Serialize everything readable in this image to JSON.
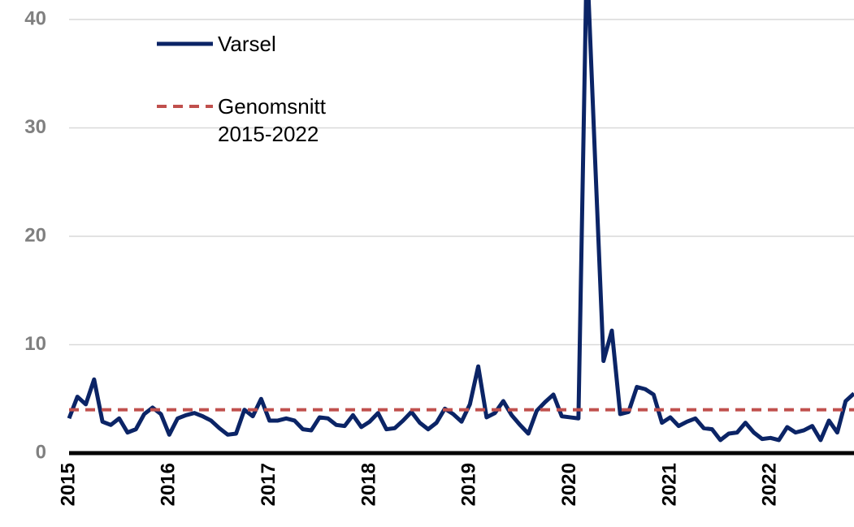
{
  "chart_data": {
    "type": "line",
    "categories": [
      "2015",
      null,
      null,
      null,
      null,
      null,
      null,
      null,
      null,
      null,
      null,
      null,
      "2016",
      null,
      null,
      null,
      null,
      null,
      null,
      null,
      null,
      null,
      null,
      null,
      "2017",
      null,
      null,
      null,
      null,
      null,
      null,
      null,
      null,
      null,
      null,
      null,
      "2018",
      null,
      null,
      null,
      null,
      null,
      null,
      null,
      null,
      null,
      null,
      null,
      "2019",
      null,
      null,
      null,
      null,
      null,
      null,
      null,
      null,
      null,
      null,
      null,
      "2020",
      null,
      null,
      null,
      null,
      null,
      null,
      null,
      null,
      null,
      null,
      null,
      "2021",
      null,
      null,
      null,
      null,
      null,
      null,
      null,
      null,
      null,
      null,
      null,
      "2022",
      null,
      null,
      null,
      null,
      null,
      null,
      null,
      null,
      null,
      null
    ],
    "series": [
      {
        "name": "Varsel",
        "color": "#0b2466",
        "dash": false,
        "values": [
          3.2,
          5.2,
          4.5,
          6.8,
          2.9,
          2.6,
          3.2,
          1.9,
          2.2,
          3.6,
          4.2,
          3.6,
          1.7,
          3.2,
          3.5,
          3.7,
          3.4,
          3.0,
          2.3,
          1.7,
          1.8,
          4.0,
          3.4,
          5.0,
          3.0,
          3.0,
          3.2,
          3.0,
          2.2,
          2.1,
          3.3,
          3.2,
          2.6,
          2.5,
          3.5,
          2.4,
          2.9,
          3.7,
          2.2,
          2.3,
          3.0,
          3.8,
          2.8,
          2.2,
          2.8,
          4.1,
          3.6,
          2.9,
          4.5,
          8.0,
          3.3,
          3.7,
          4.8,
          3.5,
          2.6,
          1.8,
          3.9,
          4.7,
          5.4,
          3.4,
          3.3,
          3.2,
          46,
          27,
          8.5,
          11.3,
          3.6,
          3.8,
          6.1,
          5.9,
          5.4,
          2.8,
          3.3,
          2.5,
          2.9,
          3.2,
          2.3,
          2.2,
          1.2,
          1.8,
          1.9,
          2.8,
          1.9,
          1.3,
          1.4,
          1.2,
          2.4,
          1.9,
          2.1,
          2.5,
          1.2,
          3.0,
          1.9,
          4.8,
          5.5
        ]
      },
      {
        "name": "Genomsnitt 2015-2022",
        "color": "#c0504d",
        "dash": true,
        "values": [
          4.0,
          4.0,
          4.0,
          4.0,
          4.0,
          4.0,
          4.0,
          4.0,
          4.0,
          4.0,
          4.0,
          4.0,
          4.0,
          4.0,
          4.0,
          4.0,
          4.0,
          4.0,
          4.0,
          4.0,
          4.0,
          4.0,
          4.0,
          4.0,
          4.0,
          4.0,
          4.0,
          4.0,
          4.0,
          4.0,
          4.0,
          4.0,
          4.0,
          4.0,
          4.0,
          4.0,
          4.0,
          4.0,
          4.0,
          4.0,
          4.0,
          4.0,
          4.0,
          4.0,
          4.0,
          4.0,
          4.0,
          4.0,
          4.0,
          4.0,
          4.0,
          4.0,
          4.0,
          4.0,
          4.0,
          4.0,
          4.0,
          4.0,
          4.0,
          4.0,
          4.0,
          4.0,
          4.0,
          4.0,
          4.0,
          4.0,
          4.0,
          4.0,
          4.0,
          4.0,
          4.0,
          4.0,
          4.0,
          4.0,
          4.0,
          4.0,
          4.0,
          4.0,
          4.0,
          4.0,
          4.0,
          4.0,
          4.0,
          4.0,
          4.0,
          4.0,
          4.0,
          4.0,
          4.0,
          4.0,
          4.0,
          4.0,
          4.0,
          4.0,
          4.0
        ]
      }
    ],
    "ylim": [
      0,
      41.8
    ],
    "yticks": [
      0,
      10,
      20,
      30,
      40
    ],
    "grid": true
  }
}
